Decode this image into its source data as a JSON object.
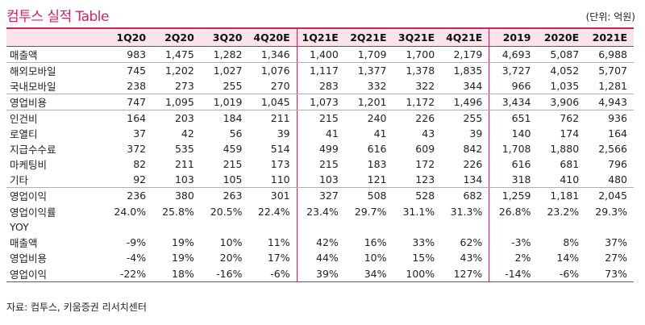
{
  "title": "컴투스 실적 Table",
  "unit": "(단위: 억원)",
  "columns": [
    "1Q20",
    "2Q20",
    "3Q20",
    "4Q20E",
    "1Q21E",
    "2Q21E",
    "3Q21E",
    "4Q21E",
    "2019",
    "2020E",
    "2021E"
  ],
  "rows": [
    {
      "label": "매출액",
      "values": [
        "983",
        "1,475",
        "1,282",
        "1,346",
        "1,400",
        "1,709",
        "1,700",
        "2,179",
        "4,693",
        "5,087",
        "6,988"
      ],
      "sep": true
    },
    {
      "label": "해외모바일",
      "values": [
        "745",
        "1,202",
        "1,027",
        "1,076",
        "1,117",
        "1,377",
        "1,378",
        "1,835",
        "3,727",
        "4,052",
        "5,707"
      ],
      "sep": false
    },
    {
      "label": "국내모바일",
      "values": [
        "238",
        "273",
        "255",
        "270",
        "283",
        "332",
        "322",
        "344",
        "966",
        "1,035",
        "1,281"
      ],
      "sep": true
    },
    {
      "label": "영업비용",
      "values": [
        "747",
        "1,095",
        "1,019",
        "1,045",
        "1,073",
        "1,201",
        "1,172",
        "1,496",
        "3,434",
        "3,906",
        "4,943"
      ],
      "sep": true
    },
    {
      "label": "인건비",
      "values": [
        "164",
        "203",
        "184",
        "211",
        "215",
        "240",
        "226",
        "255",
        "651",
        "762",
        "936"
      ],
      "sep": false
    },
    {
      "label": "로열티",
      "values": [
        "37",
        "42",
        "56",
        "39",
        "41",
        "41",
        "43",
        "39",
        "140",
        "174",
        "164"
      ],
      "sep": false
    },
    {
      "label": "지급수수료",
      "values": [
        "372",
        "535",
        "459",
        "514",
        "499",
        "616",
        "609",
        "842",
        "1,708",
        "1,880",
        "2,566"
      ],
      "sep": false
    },
    {
      "label": "마케팅비",
      "values": [
        "82",
        "211",
        "215",
        "173",
        "215",
        "183",
        "172",
        "226",
        "616",
        "681",
        "796"
      ],
      "sep": false
    },
    {
      "label": "기타",
      "values": [
        "92",
        "103",
        "105",
        "110",
        "103",
        "121",
        "123",
        "134",
        "318",
        "410",
        "480"
      ],
      "sep": true
    },
    {
      "label": "영업이익",
      "values": [
        "236",
        "380",
        "263",
        "301",
        "327",
        "508",
        "528",
        "682",
        "1,259",
        "1,181",
        "2,045"
      ],
      "sep": false
    },
    {
      "label": "영업이익률",
      "values": [
        "24.0%",
        "25.8%",
        "20.5%",
        "22.4%",
        "23.4%",
        "29.7%",
        "31.1%",
        "31.3%",
        "26.8%",
        "23.2%",
        "29.3%"
      ],
      "sep": false
    },
    {
      "label": "YOY",
      "values": [
        "",
        "",
        "",
        "",
        "",
        "",
        "",
        "",
        "",
        "",
        ""
      ],
      "sep": false
    },
    {
      "label": "매출액",
      "values": [
        "-9%",
        "19%",
        "10%",
        "11%",
        "42%",
        "16%",
        "33%",
        "62%",
        "-3%",
        "8%",
        "37%"
      ],
      "sep": false
    },
    {
      "label": "영업비용",
      "values": [
        "-4%",
        "19%",
        "20%",
        "17%",
        "44%",
        "10%",
        "15%",
        "43%",
        "2%",
        "14%",
        "27%"
      ],
      "sep": false
    },
    {
      "label": "영업이익",
      "values": [
        "-22%",
        "18%",
        "-16%",
        "-6%",
        "39%",
        "34%",
        "100%",
        "127%",
        "-14%",
        "-6%",
        "73%"
      ],
      "sep": false
    }
  ],
  "source": "자료: 컴투스, 키움증권 리서치센터",
  "colors": {
    "accent": "#c02a5a",
    "title": "#d4216a",
    "header_bg": "#fbe3ec"
  }
}
